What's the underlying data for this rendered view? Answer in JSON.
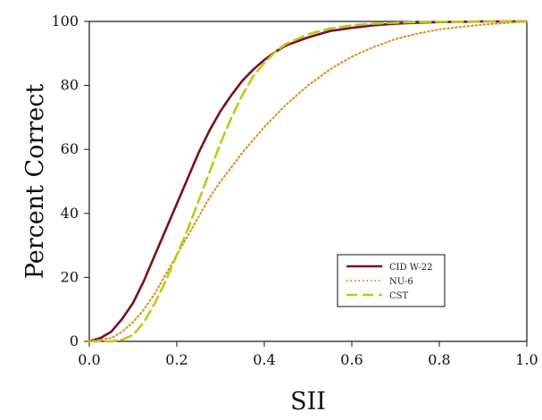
{
  "chart_data": {
    "type": "line",
    "title": "",
    "xlabel": "SII",
    "ylabel": "Percent Correct",
    "xlim": [
      0,
      1
    ],
    "ylim": [
      0,
      100
    ],
    "xticks": [
      0.0,
      0.2,
      0.4,
      0.6,
      0.8,
      1.0
    ],
    "xtick_labels": [
      "0.0",
      "0.2",
      "0.4",
      "0.6",
      "0.8",
      "1.0"
    ],
    "yticks": [
      0,
      20,
      40,
      60,
      80,
      100
    ],
    "ytick_labels": [
      "0",
      "20",
      "40",
      "60",
      "80",
      "100"
    ],
    "grid": false,
    "legend_position": "bottom-right",
    "series": [
      {
        "name": "CID W-22",
        "color": "#7a1020",
        "dash": "solid",
        "x": [
          0,
          0.025,
          0.05,
          0.075,
          0.1,
          0.125,
          0.15,
          0.175,
          0.2,
          0.225,
          0.25,
          0.275,
          0.3,
          0.325,
          0.35,
          0.375,
          0.4,
          0.425,
          0.45,
          0.5,
          0.55,
          0.6,
          0.65,
          0.7,
          0.75,
          0.8,
          0.85,
          0.9,
          0.95,
          1.0
        ],
        "y": [
          0,
          1,
          3,
          7,
          12,
          19,
          27,
          35,
          43,
          51,
          59,
          66,
          72,
          77,
          81.5,
          85,
          88,
          90.5,
          92.5,
          95,
          97,
          98,
          98.8,
          99.3,
          99.6,
          99.8,
          99.9,
          100,
          100,
          100
        ]
      },
      {
        "name": "NU-6",
        "color": "#e08a1e",
        "dash": "dotted",
        "x": [
          0,
          0.05,
          0.075,
          0.1,
          0.125,
          0.15,
          0.175,
          0.2,
          0.225,
          0.25,
          0.275,
          0.3,
          0.35,
          0.4,
          0.45,
          0.5,
          0.55,
          0.6,
          0.65,
          0.7,
          0.75,
          0.8,
          0.85,
          0.9,
          0.95,
          1.0
        ],
        "y": [
          0,
          1,
          3,
          6,
          10,
          15,
          21,
          27,
          33,
          39,
          45,
          50,
          59,
          67,
          74,
          80,
          85,
          89,
          92,
          94.5,
          96.2,
          97.5,
          98.3,
          99,
          99.5,
          100
        ]
      },
      {
        "name": "CST",
        "color": "#b5cc1a",
        "dash": "dashed",
        "x": [
          0,
          0.05,
          0.075,
          0.1,
          0.125,
          0.15,
          0.175,
          0.2,
          0.225,
          0.25,
          0.275,
          0.3,
          0.325,
          0.35,
          0.375,
          0.4,
          0.425,
          0.45,
          0.5,
          0.55,
          0.6,
          0.65,
          0.7,
          0.75,
          0.8,
          0.9,
          1.0
        ],
        "y": [
          0,
          0,
          0.5,
          2,
          6,
          12,
          19,
          27,
          35,
          44,
          53,
          62,
          70,
          77,
          83,
          87,
          90.5,
          93,
          96,
          97.8,
          98.8,
          99.3,
          99.6,
          99.8,
          99.9,
          100,
          100
        ]
      }
    ]
  }
}
